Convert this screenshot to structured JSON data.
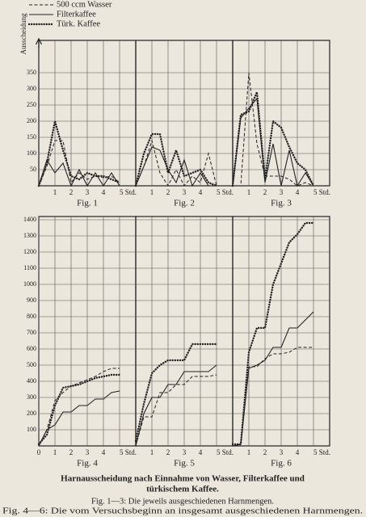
{
  "y_label": "Ausscheidung",
  "caption": {
    "title_lines": [
      "Harnausscheidung nach Einnahme von Wasser, Filterkaffee und",
      "türkischem Kaffee."
    ],
    "notes": [
      "Fig. 1—3: Die jeweils ausgeschiedenen Harnmengen.",
      "Fig. 4—6: Die vom Versuchsbeginn an insgesamt ausgeschiedenen Harnmengen."
    ]
  },
  "chart_data": [
    {
      "type": "line",
      "title": "Fig. 1",
      "x": [
        0,
        0.5,
        1,
        1.5,
        2,
        2.5,
        3,
        3.5,
        4,
        4.5,
        5
      ],
      "xlim": [
        0,
        6
      ],
      "ylim": [
        0,
        450
      ],
      "xticks": [
        1,
        2,
        3,
        4,
        {
          "value": 5,
          "label": "5 Std."
        }
      ],
      "yticks": [
        50,
        100,
        150,
        200,
        250,
        300,
        350
      ],
      "series": [
        {
          "name": "500 ccm Wasser",
          "style": "dashed",
          "color": "#222",
          "values": [
            0,
            60,
            140,
            140,
            10,
            40,
            20,
            30,
            25,
            30,
            10
          ]
        },
        {
          "name": "Filterkaffee",
          "style": "solid",
          "color": "#222",
          "values": [
            0,
            80,
            40,
            70,
            0,
            50,
            0,
            40,
            0,
            40,
            0
          ]
        },
        {
          "name": "Türk. Kaffee",
          "style": "dotted",
          "color": "#222",
          "values": [
            0,
            70,
            200,
            110,
            30,
            20,
            40,
            30,
            30,
            20,
            10
          ]
        }
      ]
    },
    {
      "type": "line",
      "title": "Fig. 2",
      "x": [
        0,
        0.5,
        1,
        1.5,
        2,
        2.5,
        3,
        3.5,
        4,
        4.5,
        5
      ],
      "xlim": [
        0,
        6
      ],
      "ylim": [
        0,
        450
      ],
      "xticks": [
        1,
        2,
        3,
        4,
        {
          "value": 5,
          "label": "5 Std."
        }
      ],
      "series": [
        {
          "style": "dashed",
          "color": "#222",
          "values": [
            0,
            60,
            140,
            40,
            0,
            50,
            0,
            30,
            10,
            100,
            0
          ]
        },
        {
          "style": "solid",
          "color": "#222",
          "values": [
            0,
            60,
            120,
            110,
            50,
            10,
            80,
            0,
            40,
            0,
            0
          ]
        },
        {
          "style": "dotted",
          "color": "#222",
          "values": [
            0,
            100,
            160,
            160,
            40,
            110,
            30,
            40,
            50,
            10,
            0
          ]
        }
      ]
    },
    {
      "type": "line",
      "title": "Fig. 3",
      "x": [
        0,
        0.5,
        1,
        1.5,
        2,
        2.5,
        3,
        3.5,
        4,
        4.5,
        5
      ],
      "xlim": [
        0,
        6
      ],
      "ylim": [
        0,
        450
      ],
      "xticks": [
        1,
        2,
        3,
        4,
        {
          "value": 5,
          "label": "5 Std."
        }
      ],
      "series": [
        {
          "style": "dashed",
          "color": "#222",
          "values": [
            0,
            0,
            350,
            130,
            30,
            30,
            30,
            20,
            0,
            10,
            0
          ]
        },
        {
          "style": "solid",
          "color": "#222",
          "values": [
            0,
            210,
            240,
            270,
            10,
            130,
            0,
            110,
            0,
            40,
            0
          ]
        },
        {
          "style": "dotted",
          "color": "#222",
          "values": [
            0,
            220,
            230,
            290,
            20,
            200,
            180,
            120,
            70,
            50,
            0
          ]
        }
      ]
    },
    {
      "type": "line",
      "title": "Fig. 4",
      "x": [
        0,
        0.5,
        1,
        1.5,
        2,
        2.5,
        3,
        3.5,
        4,
        4.5,
        5
      ],
      "xlim": [
        0,
        6
      ],
      "ylim": [
        0,
        1420
      ],
      "xticks": [
        0,
        1,
        2,
        3,
        4,
        {
          "value": 5,
          "label": "5 Std."
        }
      ],
      "yticks": [
        100,
        200,
        300,
        400,
        500,
        600,
        700,
        800,
        900,
        1000,
        1100,
        1200,
        1300,
        1400
      ],
      "series": [
        {
          "style": "dashed",
          "color": "#222",
          "values": [
            0,
            100,
            280,
            330,
            370,
            390,
            410,
            430,
            460,
            480,
            480
          ]
        },
        {
          "style": "solid",
          "color": "#222",
          "values": [
            0,
            100,
            130,
            210,
            210,
            250,
            250,
            290,
            290,
            330,
            340
          ]
        },
        {
          "style": "dotted",
          "color": "#222",
          "values": [
            10,
            70,
            250,
            360,
            370,
            380,
            400,
            420,
            430,
            440,
            440
          ]
        }
      ]
    },
    {
      "type": "line",
      "title": "Fig. 5",
      "x": [
        0,
        0.5,
        1,
        1.5,
        2,
        2.5,
        3,
        3.5,
        4,
        4.5,
        5
      ],
      "xlim": [
        0,
        6
      ],
      "ylim": [
        0,
        1420
      ],
      "xticks": [
        1,
        2,
        3,
        4,
        {
          "value": 5,
          "label": "5 Std."
        }
      ],
      "series": [
        {
          "style": "dashed",
          "color": "#222",
          "values": [
            0,
            180,
            180,
            330,
            330,
            380,
            380,
            430,
            430,
            430,
            440
          ]
        },
        {
          "style": "solid",
          "color": "#222",
          "values": [
            0,
            200,
            300,
            300,
            380,
            380,
            460,
            460,
            460,
            460,
            500
          ]
        },
        {
          "style": "dotted",
          "color": "#222",
          "values": [
            30,
            260,
            450,
            500,
            530,
            530,
            530,
            630,
            630,
            630,
            630
          ]
        }
      ]
    },
    {
      "type": "line",
      "title": "Fig. 6",
      "x": [
        0,
        0.5,
        1,
        1.5,
        2,
        2.5,
        3,
        3.5,
        4,
        4.5,
        5
      ],
      "xlim": [
        0,
        6
      ],
      "ylim": [
        0,
        1420
      ],
      "xticks": [
        1,
        2,
        3,
        4,
        {
          "value": 5,
          "label": "5 Std."
        }
      ],
      "series": [
        {
          "style": "dashed",
          "color": "#222",
          "values": [
            0,
            10,
            490,
            490,
            540,
            570,
            570,
            580,
            610,
            610,
            610
          ]
        },
        {
          "style": "solid",
          "color": "#222",
          "values": [
            0,
            10,
            480,
            500,
            530,
            610,
            610,
            730,
            730,
            780,
            830
          ]
        },
        {
          "style": "dotted",
          "color": "#222",
          "values": [
            10,
            10,
            580,
            730,
            730,
            1000,
            1130,
            1260,
            1310,
            1380,
            1380
          ]
        }
      ]
    }
  ]
}
